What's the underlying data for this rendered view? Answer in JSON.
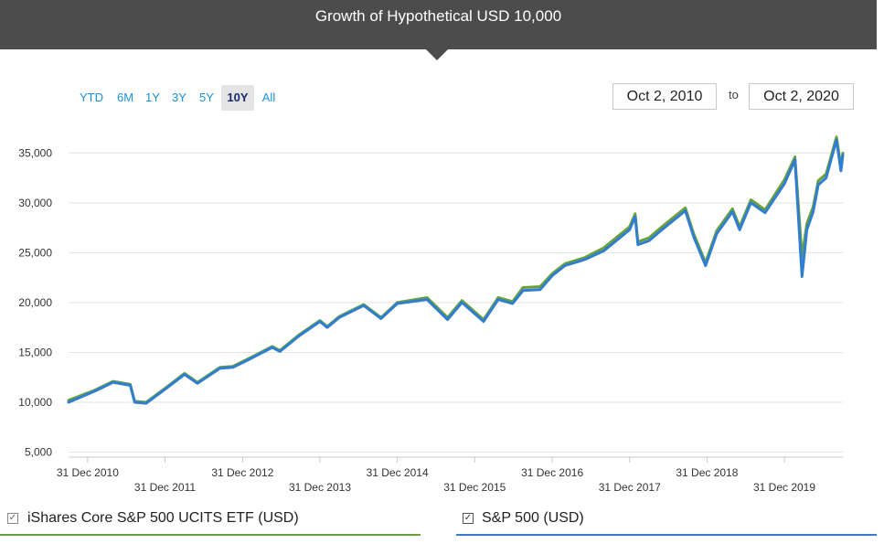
{
  "header": {
    "title": "Growth of Hypothetical USD 10,000"
  },
  "range_buttons": [
    "YTD",
    "6M",
    "1Y",
    "3Y",
    "5Y",
    "10Y",
    "All"
  ],
  "range_active": "10Y",
  "date_range": {
    "from": "Oct 2, 2010",
    "to_label": "to",
    "to": "Oct 2, 2020"
  },
  "legend": [
    {
      "label": "iShares Core S&P 500 UCITS ETF (USD)",
      "checked": true,
      "color": "#6aa03a"
    },
    {
      "label": "S&P 500 (USD)",
      "checked": true,
      "color": "#2f7ed2"
    }
  ],
  "chart_data": {
    "type": "line",
    "ylim": [
      4500,
      37500
    ],
    "yticks": [
      5000,
      10000,
      15000,
      20000,
      25000,
      30000,
      35000
    ],
    "ytick_labels": [
      "5,000",
      "10,000",
      "15,000",
      "20,000",
      "25,000",
      "30,000",
      "35,000"
    ],
    "xlim": [
      "2010-10-02",
      "2020-10-02"
    ],
    "xticks": [
      "2010-12-31",
      "2011-12-31",
      "2012-12-31",
      "2013-12-31",
      "2014-12-31",
      "2015-12-31",
      "2016-12-31",
      "2017-12-31",
      "2018-12-31",
      "2019-12-31"
    ],
    "xtick_labels": [
      "31 Dec 2010",
      "31 Dec 2011",
      "31 Dec 2012",
      "31 Dec 2013",
      "31 Dec 2014",
      "31 Dec 2015",
      "31 Dec 2016",
      "31 Dec 2017",
      "31 Dec 2018",
      "31 Dec 2019"
    ],
    "grid": true,
    "series": [
      {
        "name": "iShares Core S&P 500 UCITS ETF (USD)",
        "color": "#6aa03a",
        "x": [
          "2010-10-02",
          "2011-02-01",
          "2011-04-30",
          "2011-07-20",
          "2011-08-10",
          "2011-10-03",
          "2011-12-31",
          "2012-04-01",
          "2012-06-01",
          "2012-09-15",
          "2012-11-15",
          "2013-01-31",
          "2013-05-20",
          "2013-06-25",
          "2013-09-20",
          "2013-12-31",
          "2014-02-03",
          "2014-04-01",
          "2014-07-25",
          "2014-10-15",
          "2014-12-31",
          "2015-05-20",
          "2015-08-25",
          "2015-11-01",
          "2016-02-11",
          "2016-04-20",
          "2016-06-27",
          "2016-08-15",
          "2016-11-04",
          "2016-12-31",
          "2017-03-01",
          "2017-06-01",
          "2017-09-01",
          "2017-12-31",
          "2018-01-26",
          "2018-02-08",
          "2018-04-02",
          "2018-06-01",
          "2018-09-20",
          "2018-10-29",
          "2018-12-24",
          "2019-02-15",
          "2019-04-30",
          "2019-06-03",
          "2019-07-26",
          "2019-10-01",
          "2019-12-31",
          "2020-02-19",
          "2020-03-23",
          "2020-04-15",
          "2020-05-15",
          "2020-06-08",
          "2020-07-15",
          "2020-09-02",
          "2020-09-23",
          "2020-10-02"
        ],
        "y": [
          10200,
          11200,
          12100,
          11800,
          10100,
          10000,
          11400,
          12900,
          12000,
          13500,
          13600,
          14400,
          15600,
          15200,
          16700,
          18200,
          17600,
          18600,
          19800,
          18500,
          20000,
          20500,
          18500,
          20200,
          18300,
          20500,
          20100,
          21500,
          21600,
          22900,
          23900,
          24500,
          25500,
          27600,
          28900,
          26100,
          26500,
          27600,
          29500,
          26900,
          24000,
          27200,
          29400,
          27600,
          30300,
          29300,
          32300,
          34600,
          24600,
          27900,
          29600,
          32200,
          32900,
          36600,
          33700,
          35000
        ]
      },
      {
        "name": "S&P 500 (USD)",
        "color": "#2f7ed2",
        "x": [
          "2010-10-02",
          "2011-02-01",
          "2011-04-30",
          "2011-07-20",
          "2011-08-10",
          "2011-10-03",
          "2011-12-31",
          "2012-04-01",
          "2012-06-01",
          "2012-09-15",
          "2012-11-15",
          "2013-01-31",
          "2013-05-20",
          "2013-06-25",
          "2013-09-20",
          "2013-12-31",
          "2014-02-03",
          "2014-04-01",
          "2014-07-25",
          "2014-10-15",
          "2014-12-31",
          "2015-05-20",
          "2015-08-25",
          "2015-11-01",
          "2016-02-11",
          "2016-04-20",
          "2016-06-27",
          "2016-08-15",
          "2016-11-04",
          "2016-12-31",
          "2017-03-01",
          "2017-06-01",
          "2017-09-01",
          "2017-12-31",
          "2018-01-26",
          "2018-02-08",
          "2018-04-02",
          "2018-06-01",
          "2018-09-20",
          "2018-10-29",
          "2018-12-24",
          "2019-02-15",
          "2019-04-30",
          "2019-06-03",
          "2019-07-26",
          "2019-10-01",
          "2019-12-31",
          "2020-02-19",
          "2020-03-23",
          "2020-04-15",
          "2020-05-15",
          "2020-06-08",
          "2020-07-15",
          "2020-09-02",
          "2020-09-23",
          "2020-10-02"
        ],
        "y": [
          10000,
          11100,
          12000,
          11700,
          10000,
          9900,
          11300,
          12800,
          11900,
          13400,
          13500,
          14300,
          15500,
          15100,
          16600,
          18100,
          17500,
          18500,
          19700,
          18400,
          19900,
          20300,
          18300,
          20000,
          18100,
          20300,
          19900,
          21200,
          21300,
          22700,
          23700,
          24300,
          25200,
          27300,
          28600,
          25800,
          26200,
          27300,
          29200,
          26600,
          23700,
          26900,
          29100,
          27300,
          30000,
          29000,
          31900,
          34300,
          22600,
          27300,
          29100,
          31800,
          32500,
          36300,
          33200,
          34800
        ]
      }
    ]
  }
}
